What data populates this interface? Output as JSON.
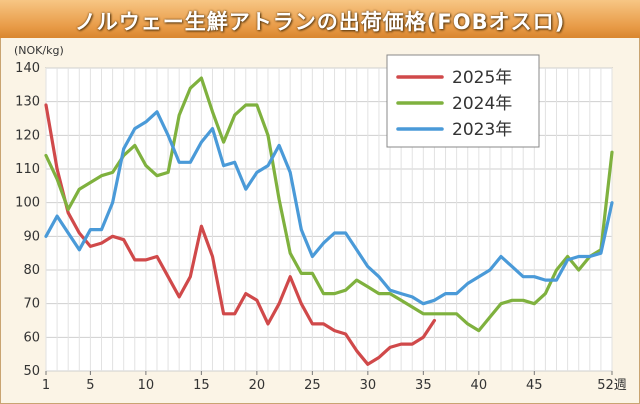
{
  "title": "ノルウェー生鮮アトランの出荷価格(FOBオスロ)",
  "chart_data": {
    "type": "line",
    "title": "ノルウェー生鮮アトランの出荷価格(FOBオスロ)",
    "ylabel": "(NOK/kg)",
    "xlabel": "",
    "xlim": [
      1,
      52
    ],
    "ylim": [
      50,
      140
    ],
    "x_ticks": [
      1,
      5,
      10,
      15,
      20,
      25,
      30,
      35,
      40,
      45,
      52
    ],
    "x_tick_labels": [
      "1",
      "5",
      "10",
      "15",
      "20",
      "25",
      "30",
      "35",
      "40",
      "45",
      "52週"
    ],
    "y_ticks": [
      50,
      60,
      70,
      80,
      90,
      100,
      110,
      120,
      130,
      140
    ],
    "grid": true,
    "legend_position": "top-center",
    "series": [
      {
        "name": "2025年",
        "color": "#d0494a",
        "x": [
          1,
          2,
          3,
          4,
          5,
          6,
          7,
          8,
          9,
          10,
          11,
          12,
          13,
          14,
          15,
          16,
          17,
          18,
          19,
          20,
          21,
          22,
          23,
          24,
          25,
          26,
          27,
          28,
          29,
          30,
          31,
          32,
          33,
          34,
          35,
          36
        ],
        "values": [
          129,
          110,
          97,
          91,
          87,
          88,
          90,
          89,
          83,
          83,
          84,
          78,
          72,
          78,
          93,
          84,
          67,
          67,
          73,
          71,
          64,
          70,
          78,
          70,
          64,
          64,
          62,
          61,
          56,
          52,
          54,
          57,
          58,
          58,
          60,
          65
        ]
      },
      {
        "name": "2024年",
        "color": "#7fb13e",
        "x": [
          1,
          2,
          3,
          4,
          5,
          6,
          7,
          8,
          9,
          10,
          11,
          12,
          13,
          14,
          15,
          16,
          17,
          18,
          19,
          20,
          21,
          22,
          23,
          24,
          25,
          26,
          27,
          28,
          29,
          30,
          31,
          32,
          33,
          34,
          35,
          36,
          37,
          38,
          39,
          40,
          41,
          42,
          43,
          44,
          45,
          46,
          47,
          48,
          49,
          50,
          51,
          52
        ],
        "values": [
          114,
          107,
          98,
          104,
          106,
          108,
          109,
          114,
          117,
          111,
          108,
          109,
          126,
          134,
          137,
          127,
          118,
          126,
          129,
          129,
          120,
          101,
          85,
          79,
          79,
          73,
          73,
          74,
          77,
          75,
          73,
          73,
          71,
          69,
          67,
          67,
          67,
          67,
          64,
          62,
          66,
          70,
          71,
          71,
          70,
          73,
          80,
          84,
          80,
          84,
          86,
          115
        ]
      },
      {
        "name": "2023年",
        "color": "#4a9ad8",
        "x": [
          1,
          2,
          3,
          4,
          5,
          6,
          7,
          8,
          9,
          10,
          11,
          12,
          13,
          14,
          15,
          16,
          17,
          18,
          19,
          20,
          21,
          22,
          23,
          24,
          25,
          26,
          27,
          28,
          29,
          30,
          31,
          32,
          33,
          34,
          35,
          36,
          37,
          38,
          39,
          40,
          41,
          42,
          43,
          44,
          45,
          46,
          47,
          48,
          49,
          50,
          51,
          52
        ],
        "values": [
          90,
          96,
          91,
          86,
          92,
          92,
          100,
          116,
          122,
          124,
          127,
          120,
          112,
          112,
          118,
          122,
          111,
          112,
          104,
          109,
          111,
          117,
          109,
          92,
          84,
          88,
          91,
          91,
          86,
          81,
          78,
          74,
          73,
          72,
          70,
          71,
          73,
          73,
          76,
          78,
          80,
          84,
          81,
          78,
          78,
          77,
          77,
          83,
          84,
          84,
          85,
          100
        ]
      }
    ]
  }
}
